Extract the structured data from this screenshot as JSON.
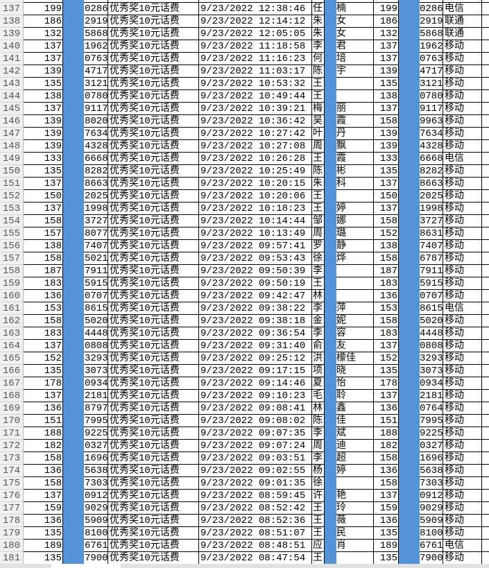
{
  "columns_hidden_color": "#5592d6",
  "rows": [
    [
      "137",
      "199",
      "0286",
      "优秀奖10元话费",
      "9/23/2022 12:38:46",
      "任",
      "楠",
      "199",
      "0286",
      "电信"
    ],
    [
      "138",
      "186",
      "2919",
      "优秀奖10元话费",
      "9/23/2022 12:14:12",
      "朱",
      "女",
      "186",
      "2919",
      "联通"
    ],
    [
      "139",
      "132",
      "5868",
      "优秀奖10元话费",
      "9/23/2022 12:05:05",
      "朱",
      "女",
      "132",
      "5868",
      "联通"
    ],
    [
      "140",
      "137",
      "1962",
      "优秀奖10元话费",
      "9/23/2022 11:18:58",
      "李",
      "君",
      "137",
      "1962",
      "移动"
    ],
    [
      "141",
      "137",
      "0763",
      "优秀奖10元话费",
      "9/23/2022 11:16:23",
      "何",
      "培",
      "137",
      "0763",
      "移动"
    ],
    [
      "142",
      "139",
      "4717",
      "优秀奖10元话费",
      "9/23/2022 11:03:17",
      "陈",
      "宇",
      "139",
      "4717",
      "移动"
    ],
    [
      "143",
      "135",
      "3121",
      "优秀奖10元话费",
      "9/23/2022 10:53:32",
      "王",
      "",
      "135",
      "3121",
      "移动"
    ],
    [
      "144",
      "138",
      "0780",
      "优秀奖10元话费",
      "9/23/2022 10:49:44",
      "王",
      "",
      "138",
      "0780",
      "移动"
    ],
    [
      "145",
      "137",
      "9117",
      "优秀奖10元话费",
      "9/23/2022 10:39:21",
      "梅",
      "丽",
      "137",
      "9117",
      "移动"
    ],
    [
      "146",
      "139",
      "8020",
      "优秀奖10元话费",
      "9/23/2022 10:36:42",
      "吴",
      "霞",
      "158",
      "9963",
      "移动"
    ],
    [
      "147",
      "139",
      "7634",
      "优秀奖10元话费",
      "9/23/2022 10:27:42",
      "叶",
      "丹",
      "139",
      "7634",
      "移动"
    ],
    [
      "148",
      "139",
      "4328",
      "优秀奖10元话费",
      "9/23/2022 10:27:08",
      "周",
      "飘",
      "139",
      "4328",
      "移动"
    ],
    [
      "149",
      "133",
      "6668",
      "优秀奖10元话费",
      "9/23/2022 10:26:28",
      "王",
      "霞",
      "133",
      "6668",
      "电信"
    ],
    [
      "150",
      "135",
      "8282",
      "优秀奖10元话费",
      "9/23/2022 10:25:49",
      "陈",
      "彬",
      "135",
      "8282",
      "移动"
    ],
    [
      "151",
      "137",
      "8663",
      "优秀奖10元话费",
      "9/23/2022 10:20:15",
      "朱",
      "科",
      "137",
      "8663",
      "移动"
    ],
    [
      "152",
      "150",
      "2025",
      "优秀奖10元话费",
      "9/23/2022 10:20:06",
      "王",
      "",
      "150",
      "2025",
      "移动"
    ],
    [
      "153",
      "137",
      "1998",
      "优秀奖10元话费",
      "9/23/2022 10:18:23",
      "王",
      "婷",
      "137",
      "1998",
      "移动"
    ],
    [
      "154",
      "158",
      "3727",
      "优秀奖10元话费",
      "9/23/2022 10:14:44",
      "邹",
      "娜",
      "158",
      "3727",
      "移动"
    ],
    [
      "155",
      "157",
      "8077",
      "优秀奖10元话费",
      "9/23/2022 10:13:49",
      "周",
      "璐",
      "152",
      "8631",
      "移动"
    ],
    [
      "156",
      "138",
      "7407",
      "优秀奖10元话费",
      "9/23/2022 09:57:41",
      "罗",
      "静",
      "138",
      "7407",
      "移动"
    ],
    [
      "157",
      "158",
      "5021",
      "优秀奖10元话费",
      "9/23/2022 09:53:43",
      "徐",
      "烨",
      "158",
      "6787",
      "移动"
    ],
    [
      "158",
      "187",
      "7911",
      "优秀奖10元话费",
      "9/23/2022 09:50:39",
      "李",
      "",
      "187",
      "7911",
      "移动"
    ],
    [
      "159",
      "183",
      "5915",
      "优秀奖10元话费",
      "9/23/2022 09:50:19",
      "王",
      "",
      "183",
      "5915",
      "移动"
    ],
    [
      "160",
      "136",
      "0707",
      "优秀奖10元话费",
      "9/23/2022 09:42:47",
      "林",
      "",
      "136",
      "0707",
      "移动"
    ],
    [
      "161",
      "153",
      "8615",
      "优秀奖10元话费",
      "9/23/2022 09:38:22",
      "李",
      "萍",
      "153",
      "8615",
      "电信"
    ],
    [
      "162",
      "158",
      "5020",
      "优秀奖10元话费",
      "9/23/2022 09:38:18",
      "金",
      "妮",
      "158",
      "5020",
      "移动"
    ],
    [
      "163",
      "183",
      "4448",
      "优秀奖10元话费",
      "9/23/2022 09:36:54",
      "李",
      "容",
      "183",
      "4448",
      "移动"
    ],
    [
      "164",
      "137",
      "0808",
      "优秀奖10元话费",
      "9/23/2022 09:31:40",
      "俞",
      "友",
      "137",
      "0808",
      "移动"
    ],
    [
      "165",
      "152",
      "3293",
      "优秀奖10元话费",
      "9/23/2022 09:25:12",
      "洪",
      "檬佳",
      "152",
      "3293",
      "移动"
    ],
    [
      "166",
      "135",
      "3073",
      "优秀奖10元话费",
      "9/23/2022 09:17:15",
      "项",
      "晓",
      "135",
      "3073",
      "移动"
    ],
    [
      "167",
      "178",
      "0934",
      "优秀奖10元话费",
      "9/23/2022 09:14:46",
      "夏",
      "怡",
      "178",
      "0934",
      "移动"
    ],
    [
      "168",
      "137",
      "2181",
      "优秀奖10元话费",
      "9/23/2022 09:10:23",
      "毛",
      "聆",
      "137",
      "2181",
      "移动"
    ],
    [
      "169",
      "136",
      "8797",
      "优秀奖10元话费",
      "9/23/2022 09:08:41",
      "林",
      "鑫",
      "136",
      "0764",
      "移动"
    ],
    [
      "170",
      "151",
      "7995",
      "优秀奖10元话费",
      "9/23/2022 09:08:02",
      "陈",
      "佳",
      "151",
      "7995",
      "移动"
    ],
    [
      "171",
      "188",
      "9225",
      "优秀奖10元话费",
      "9/23/2022 09:07:35",
      "李",
      "斌",
      "188",
      "9225",
      "移动"
    ],
    [
      "172",
      "182",
      "0327",
      "优秀奖10元话费",
      "9/23/2022 09:07:24",
      "周",
      "迪",
      "182",
      "0327",
      "移动"
    ],
    [
      "173",
      "158",
      "1696",
      "优秀奖10元话费",
      "9/23/2022 09:03:51",
      "李",
      "超",
      "158",
      "1696",
      "移动"
    ],
    [
      "174",
      "136",
      "5638",
      "优秀奖10元话费",
      "9/23/2022 09:02:55",
      "杨",
      "婷",
      "136",
      "5638",
      "移动"
    ],
    [
      "175",
      "158",
      "7303",
      "优秀奖10元话费",
      "9/23/2022 09:01:35",
      "徐",
      "",
      "158",
      "7303",
      "移动"
    ],
    [
      "176",
      "137",
      "0912",
      "优秀奖10元话费",
      "9/23/2022 08:59:45",
      "许",
      "艳",
      "137",
      "0912",
      "移动"
    ],
    [
      "177",
      "159",
      "9029",
      "优秀奖10元话费",
      "9/23/2022 08:52:42",
      "王",
      "玲",
      "159",
      "9029",
      "移动"
    ],
    [
      "178",
      "136",
      "5909",
      "优秀奖10元话费",
      "9/23/2022 08:52:36",
      "王",
      "薇",
      "136",
      "5909",
      "移动"
    ],
    [
      "179",
      "135",
      "8100",
      "优秀奖10元话费",
      "9/23/2022 08:51:07",
      "王",
      "民",
      "135",
      "8100",
      "移动"
    ],
    [
      "180",
      "189",
      "6761",
      "优秀奖10元话费",
      "9/23/2022 08:48:51",
      "应",
      "肖",
      "189",
      "6761",
      "电信"
    ],
    [
      "181",
      "135",
      "7900",
      "优秀奖10元话费",
      "9/23/2022 08:47:54",
      "王",
      "",
      "135",
      "7900",
      "移动"
    ]
  ]
}
